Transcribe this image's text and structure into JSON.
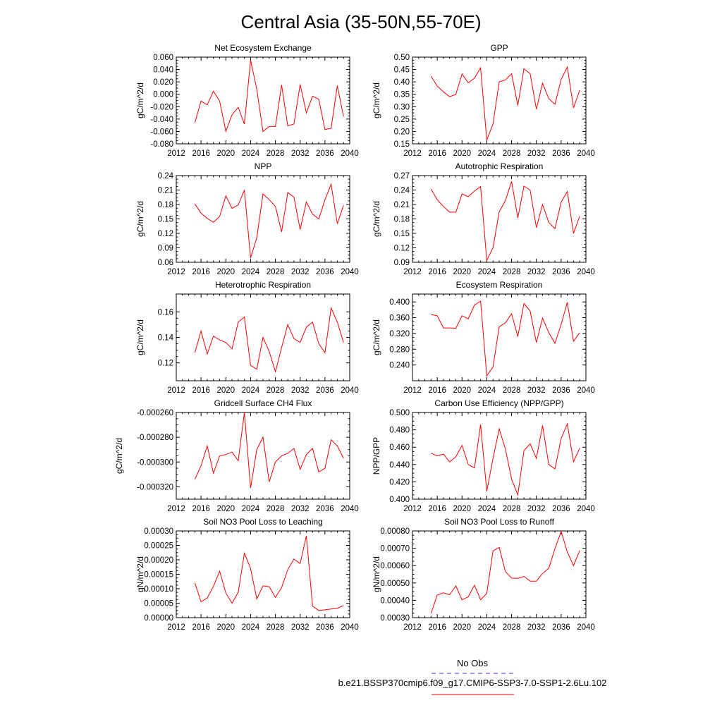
{
  "figure": {
    "title": "Central Asia (35-50N,55-70E)"
  },
  "legend": [
    {
      "label": "No Obs",
      "color": "#3333cc",
      "dash": true
    },
    {
      "label": "b.e21.BSSP370cmip6.f09_g17.CMIP6-SSP3-7.0-SSP1-2.6Lu.102",
      "color": "#ff0000",
      "dash": false
    }
  ],
  "chart_data": [
    {
      "type": "line",
      "title": "Net Ecosystem Exchange",
      "ylabel": "gC/m^2/d",
      "xlim": [
        2012,
        2040
      ],
      "xticks": [
        "2012",
        "2016",
        "2020",
        "2024",
        "2028",
        "2032",
        "2036",
        "2040"
      ],
      "ylim": [
        -0.08,
        0.06
      ],
      "yticks": [
        "-0.080",
        "-0.060",
        "-0.040",
        "-0.020",
        "0.000",
        "0.020",
        "0.040",
        "0.060"
      ],
      "x": [
        2015,
        2016,
        2017,
        2018,
        2019,
        2020,
        2021,
        2022,
        2023,
        2024,
        2025,
        2026,
        2027,
        2028,
        2029,
        2030,
        2031,
        2032,
        2033,
        2034,
        2035,
        2036,
        2037,
        2038,
        2039
      ],
      "series": [
        {
          "color": "#ff0000",
          "values": [
            -0.046,
            -0.011,
            -0.017,
            0.005,
            -0.011,
            -0.06,
            -0.033,
            -0.021,
            -0.048,
            0.055,
            0.008,
            -0.06,
            -0.052,
            -0.052,
            0.015,
            -0.051,
            -0.048,
            0.016,
            -0.03,
            -0.003,
            -0.008,
            -0.057,
            -0.055,
            0.014,
            -0.036
          ]
        }
      ]
    },
    {
      "type": "line",
      "title": "GPP",
      "ylabel": "gC/m^2/d",
      "xlim": [
        2012,
        2040
      ],
      "xticks": [
        "2012",
        "2016",
        "2020",
        "2024",
        "2028",
        "2032",
        "2036",
        "2040"
      ],
      "ylim": [
        0.15,
        0.5
      ],
      "yticks": [
        "0.15",
        "0.20",
        "0.25",
        "0.30",
        "0.35",
        "0.40",
        "0.45",
        "0.50"
      ],
      "x": [
        2015,
        2016,
        2017,
        2018,
        2019,
        2020,
        2021,
        2022,
        2023,
        2024,
        2025,
        2026,
        2027,
        2028,
        2029,
        2030,
        2031,
        2032,
        2033,
        2034,
        2035,
        2036,
        2037,
        2038,
        2039
      ],
      "series": [
        {
          "color": "#ff0000",
          "values": [
            0.423,
            0.383,
            0.36,
            0.34,
            0.35,
            0.432,
            0.396,
            0.415,
            0.457,
            0.165,
            0.23,
            0.4,
            0.408,
            0.433,
            0.305,
            0.453,
            0.433,
            0.29,
            0.395,
            0.332,
            0.31,
            0.41,
            0.46,
            0.295,
            0.366
          ]
        }
      ]
    },
    {
      "type": "line",
      "title": "NPP",
      "ylabel": "gC/m^2/d",
      "xlim": [
        2012,
        2040
      ],
      "xticks": [
        "2012",
        "2016",
        "2020",
        "2024",
        "2028",
        "2032",
        "2036",
        "2040"
      ],
      "ylim": [
        0.06,
        0.24
      ],
      "yticks": [
        "0.06",
        "0.09",
        "0.12",
        "0.15",
        "0.18",
        "0.21",
        "0.24"
      ],
      "x": [
        2015,
        2016,
        2017,
        2018,
        2019,
        2020,
        2021,
        2022,
        2023,
        2024,
        2025,
        2026,
        2027,
        2028,
        2029,
        2030,
        2031,
        2032,
        2033,
        2034,
        2035,
        2036,
        2037,
        2038,
        2039
      ],
      "series": [
        {
          "color": "#ff0000",
          "values": [
            0.181,
            0.162,
            0.151,
            0.143,
            0.155,
            0.198,
            0.172,
            0.179,
            0.21,
            0.069,
            0.111,
            0.202,
            0.19,
            0.176,
            0.123,
            0.205,
            0.195,
            0.128,
            0.185,
            0.16,
            0.15,
            0.19,
            0.222,
            0.14,
            0.178
          ]
        }
      ]
    },
    {
      "type": "line",
      "title": "Autotrophic Respiration",
      "ylabel": "gC/m^2/d",
      "xlim": [
        2012,
        2040
      ],
      "xticks": [
        "2012",
        "2016",
        "2020",
        "2024",
        "2028",
        "2032",
        "2036",
        "2040"
      ],
      "ylim": [
        0.09,
        0.27
      ],
      "yticks": [
        "0.09",
        "0.12",
        "0.15",
        "0.18",
        "0.21",
        "0.24",
        "0.27"
      ],
      "x": [
        2015,
        2016,
        2017,
        2018,
        2019,
        2020,
        2021,
        2022,
        2023,
        2024,
        2025,
        2026,
        2027,
        2028,
        2029,
        2030,
        2031,
        2032,
        2033,
        2034,
        2035,
        2036,
        2037,
        2038,
        2039
      ],
      "series": [
        {
          "color": "#ff0000",
          "values": [
            0.242,
            0.22,
            0.206,
            0.194,
            0.194,
            0.232,
            0.226,
            0.238,
            0.247,
            0.094,
            0.12,
            0.195,
            0.218,
            0.258,
            0.182,
            0.248,
            0.24,
            0.162,
            0.21,
            0.173,
            0.16,
            0.215,
            0.237,
            0.15,
            0.186
          ]
        }
      ]
    },
    {
      "type": "line",
      "title": "Heterotrophic Respiration",
      "ylabel": "gC/m^2/d",
      "xlim": [
        2012,
        2040
      ],
      "xticks": [
        "2012",
        "2016",
        "2020",
        "2024",
        "2028",
        "2032",
        "2036",
        "2040"
      ],
      "ylim": [
        0.106,
        0.174
      ],
      "yticks": [
        "0.12",
        "0.14",
        "0.16"
      ],
      "ytick_values": [
        0.12,
        0.14,
        0.16
      ],
      "x": [
        2015,
        2016,
        2017,
        2018,
        2019,
        2020,
        2021,
        2022,
        2023,
        2024,
        2025,
        2026,
        2027,
        2028,
        2029,
        2030,
        2031,
        2032,
        2033,
        2034,
        2035,
        2036,
        2037,
        2038,
        2039
      ],
      "series": [
        {
          "color": "#ff0000",
          "values": [
            0.128,
            0.145,
            0.127,
            0.141,
            0.138,
            0.136,
            0.131,
            0.152,
            0.156,
            0.118,
            0.115,
            0.14,
            0.129,
            0.113,
            0.132,
            0.15,
            0.139,
            0.136,
            0.148,
            0.152,
            0.135,
            0.128,
            0.163,
            0.152,
            0.136
          ]
        }
      ]
    },
    {
      "type": "line",
      "title": "Ecosystem Respiration",
      "ylabel": "gC/m^2/d",
      "xlim": [
        2012,
        2040
      ],
      "xticks": [
        "2012",
        "2016",
        "2020",
        "2024",
        "2028",
        "2032",
        "2036",
        "2040"
      ],
      "ylim": [
        0.2,
        0.42
      ],
      "yticks": [
        "0.240",
        "0.280",
        "0.320",
        "0.360",
        "0.400"
      ],
      "ytick_values": [
        0.24,
        0.28,
        0.32,
        0.36,
        0.4
      ],
      "x": [
        2015,
        2016,
        2017,
        2018,
        2019,
        2020,
        2021,
        2022,
        2023,
        2024,
        2025,
        2026,
        2027,
        2028,
        2029,
        2030,
        2031,
        2032,
        2033,
        2034,
        2035,
        2036,
        2037,
        2038,
        2039
      ],
      "series": [
        {
          "color": "#ff0000",
          "values": [
            0.368,
            0.365,
            0.334,
            0.334,
            0.333,
            0.365,
            0.357,
            0.392,
            0.402,
            0.212,
            0.235,
            0.337,
            0.347,
            0.37,
            0.312,
            0.396,
            0.377,
            0.297,
            0.359,
            0.322,
            0.295,
            0.343,
            0.399,
            0.3,
            0.322
          ]
        }
      ]
    },
    {
      "type": "line",
      "title": "Gridcell Surface CH4 Flux",
      "ylabel": "gC/m^2/d",
      "xlim": [
        2012,
        2040
      ],
      "xticks": [
        "2012",
        "2016",
        "2020",
        "2024",
        "2028",
        "2032",
        "2036",
        "2040"
      ],
      "ylim": [
        -0.00033,
        -0.00026
      ],
      "yticks": [
        "-0.000320",
        "-0.000300",
        "-0.000280",
        "-0.000260"
      ],
      "ytick_values": [
        -0.00032,
        -0.0003,
        -0.00028,
        -0.00026
      ],
      "x": [
        2015,
        2016,
        2017,
        2018,
        2019,
        2020,
        2021,
        2022,
        2023,
        2024,
        2025,
        2026,
        2027,
        2028,
        2029,
        2030,
        2031,
        2032,
        2033,
        2034,
        2035,
        2036,
        2037,
        2038,
        2039
      ],
      "series": [
        {
          "color": "#ff0000",
          "values": [
            -0.000314,
            -0.000303,
            -0.000287,
            -0.000309,
            -0.000295,
            -0.000294,
            -0.000292,
            -0.000299,
            -0.00026,
            -0.000321,
            -0.00029,
            -0.00028,
            -0.000316,
            -0.0003,
            -0.000295,
            -0.000293,
            -0.000289,
            -0.000306,
            -0.000294,
            -0.000289,
            -0.000308,
            -0.000305,
            -0.000282,
            -0.000287,
            -0.000297
          ]
        }
      ]
    },
    {
      "type": "line",
      "title": "Carbon Use Efficiency (NPP/GPP)",
      "ylabel": "NPP/GPP",
      "xlim": [
        2012,
        2040
      ],
      "xticks": [
        "2012",
        "2016",
        "2020",
        "2024",
        "2028",
        "2032",
        "2036",
        "2040"
      ],
      "ylim": [
        0.4,
        0.5
      ],
      "yticks": [
        "0.400",
        "0.420",
        "0.440",
        "0.460",
        "0.480",
        "0.500"
      ],
      "x": [
        2015,
        2016,
        2017,
        2018,
        2019,
        2020,
        2021,
        2022,
        2023,
        2024,
        2025,
        2026,
        2027,
        2028,
        2029,
        2030,
        2031,
        2032,
        2033,
        2034,
        2035,
        2036,
        2037,
        2038,
        2039
      ],
      "series": [
        {
          "color": "#ff0000",
          "values": [
            0.453,
            0.45,
            0.452,
            0.443,
            0.449,
            0.462,
            0.44,
            0.436,
            0.486,
            0.409,
            0.447,
            0.481,
            0.458,
            0.423,
            0.405,
            0.456,
            0.464,
            0.447,
            0.485,
            0.44,
            0.435,
            0.47,
            0.487,
            0.443,
            0.459
          ]
        }
      ]
    },
    {
      "type": "line",
      "title": "Soil NO3 Pool Loss to Leaching",
      "ylabel": "gN/m^2/d",
      "xlim": [
        2012,
        2040
      ],
      "xticks": [
        "2012",
        "2016",
        "2020",
        "2024",
        "2028",
        "2032",
        "2036",
        "2040"
      ],
      "ylim": [
        0,
        0.0003
      ],
      "yticks": [
        "0.00000",
        "0.00005",
        "0.00010",
        "0.00015",
        "0.00020",
        "0.00025",
        "0.00030"
      ],
      "x": [
        2015,
        2016,
        2017,
        2018,
        2019,
        2020,
        2021,
        2022,
        2023,
        2024,
        2025,
        2026,
        2027,
        2028,
        2029,
        2030,
        2031,
        2032,
        2033,
        2034,
        2035,
        2036,
        2037,
        2038,
        2039
      ],
      "series": [
        {
          "color": "#ff0000",
          "values": [
            0.00012,
            5.5e-05,
            6.8e-05,
            0.000108,
            0.000161,
            8.5e-05,
            5e-05,
            8.8e-05,
            0.000223,
            0.00017,
            6.5e-05,
            0.00011,
            0.000107,
            7e-05,
            0.000104,
            0.000166,
            0.000203,
            0.000187,
            0.000283,
            4e-05,
            2.5e-05,
            2.7e-05,
            3e-05,
            3.2e-05,
            4.2e-05
          ]
        }
      ]
    },
    {
      "type": "line",
      "title": "Soil NO3 Pool Loss to Runoff",
      "ylabel": "gN/m^2/d",
      "xlim": [
        2012,
        2040
      ],
      "xticks": [
        "2012",
        "2016",
        "2020",
        "2024",
        "2028",
        "2032",
        "2036",
        "2040"
      ],
      "ylim": [
        0.0003,
        0.0008
      ],
      "yticks": [
        "0.00030",
        "0.00040",
        "0.00050",
        "0.00060",
        "0.00070",
        "0.00080"
      ],
      "x": [
        2015,
        2016,
        2017,
        2018,
        2019,
        2020,
        2021,
        2022,
        2023,
        2024,
        2025,
        2026,
        2027,
        2028,
        2029,
        2030,
        2031,
        2032,
        2033,
        2034,
        2035,
        2036,
        2037,
        2038,
        2039
      ],
      "series": [
        {
          "color": "#ff0000",
          "values": [
            0.000325,
            0.00043,
            0.000443,
            0.000432,
            0.000483,
            0.000403,
            0.00042,
            0.000487,
            0.000403,
            0.00044,
            0.000685,
            0.000705,
            0.000565,
            0.000528,
            0.000527,
            0.000538,
            0.00051,
            0.00051,
            0.000555,
            0.000585,
            0.000698,
            0.000797,
            0.000678,
            0.0006,
            0.000687
          ]
        }
      ]
    }
  ]
}
